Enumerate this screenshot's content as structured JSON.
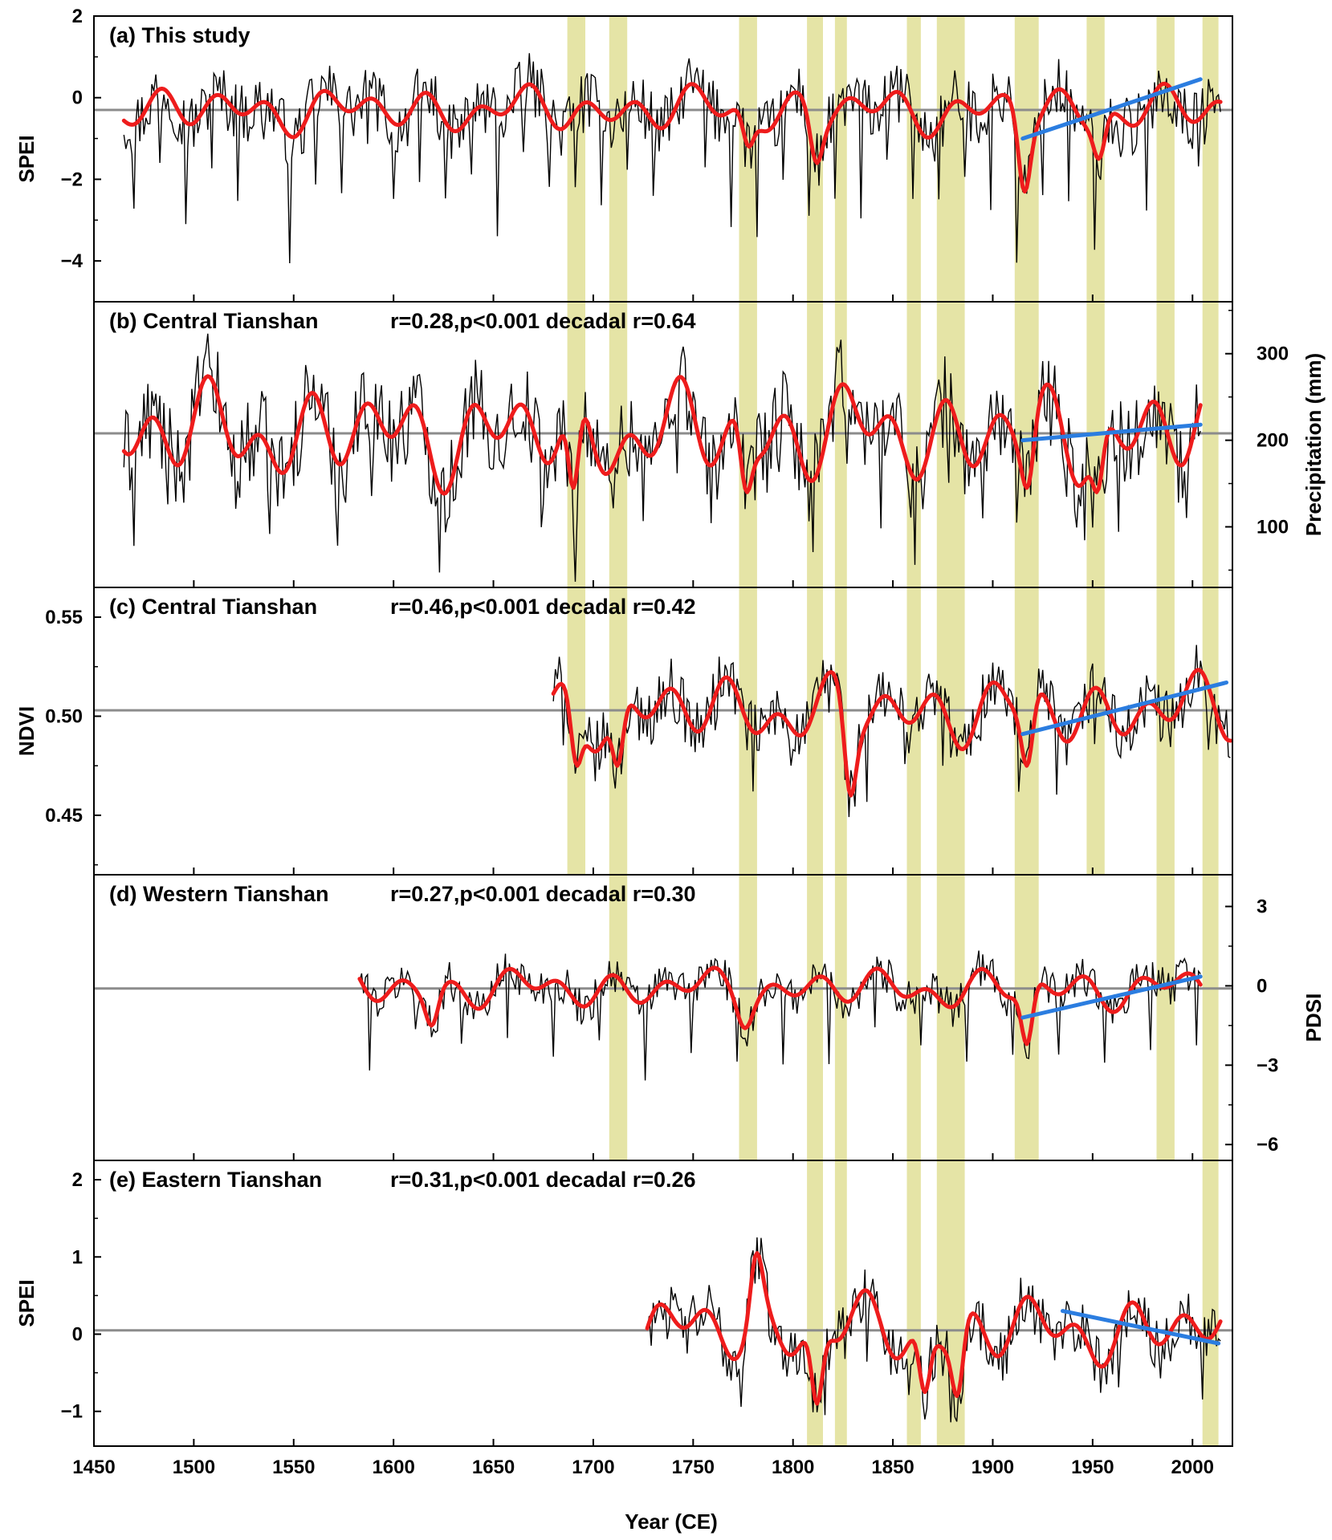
{
  "figure": {
    "xlabel": "Year (CE)"
  },
  "colors": {
    "band": "#e5e4a6",
    "raw": "#000000",
    "smooth": "#ee1c1c",
    "trend": "#2b7de0",
    "mean": "#8c8c8c",
    "frame": "#000000"
  },
  "chart_data": [
    {
      "id": "a",
      "type": "line",
      "title": "(a) This study",
      "stats": "",
      "ylabel": "SPEI",
      "yaxis_side": "left",
      "ylim": [
        -5,
        2
      ],
      "yticks": [
        -4,
        -2,
        0,
        2
      ],
      "ytick_labels": [
        "−4",
        "−2",
        "0",
        "2"
      ],
      "xlim": [
        1450,
        2020
      ],
      "start": 1465,
      "end": 2014,
      "mean": -0.3,
      "amp": 0.55,
      "smooth_amp": 0.45,
      "spike_every": 13,
      "spike_size": -2.2,
      "trend": {
        "x": [
          1915,
          2004
        ],
        "y": [
          -1.0,
          0.45
        ]
      },
      "droughts": [
        {
          "year": 1916,
          "value": -2.3
        },
        {
          "year": 1953,
          "value": -1.5
        },
        {
          "year": 1778,
          "value": -1.2
        },
        {
          "year": 1812,
          "value": -1.6
        }
      ]
    },
    {
      "id": "b",
      "type": "line",
      "title": "(b) Central Tianshan",
      "stats": "r=0.28,p<0.001   decadal r=0.64",
      "ylabel": "Precipitation (mm)",
      "yaxis_side": "right",
      "ylim": [
        30,
        360
      ],
      "yticks": [
        100,
        200,
        300
      ],
      "ytick_labels": [
        "100",
        "200",
        "300"
      ],
      "xlim": [
        1450,
        2020
      ],
      "start": 1465,
      "end": 2004,
      "mean": 208,
      "amp": 38,
      "smooth_amp": 45,
      "spike_every": 17,
      "spike_size": -70,
      "trend": {
        "x": [
          1915,
          2004
        ],
        "y": [
          200,
          218
        ]
      },
      "droughts": [
        {
          "year": 1917,
          "value": 145
        },
        {
          "year": 1952,
          "value": 140
        },
        {
          "year": 1690,
          "value": 145
        },
        {
          "year": 1777,
          "value": 140
        }
      ]
    },
    {
      "id": "c",
      "type": "line",
      "title": "(c) Central Tianshan",
      "stats": "r=0.46,p<0.001   decadal r=0.42",
      "ylabel": "NDVI",
      "yaxis_side": "left",
      "ylim": [
        0.42,
        0.565
      ],
      "yticks": [
        0.45,
        0.5,
        0.55
      ],
      "ytick_labels": [
        "0.45",
        "0.50",
        "0.55"
      ],
      "xlim": [
        1450,
        2020
      ],
      "start": 1680,
      "end": 2019,
      "mean": 0.503,
      "amp": 0.011,
      "smooth_amp": 0.014,
      "spike_every": 19,
      "spike_size": -0.025,
      "trend": {
        "x": [
          1915,
          2017
        ],
        "y": [
          0.491,
          0.517
        ]
      },
      "droughts": [
        {
          "year": 1692,
          "value": 0.475
        },
        {
          "year": 1712,
          "value": 0.475
        },
        {
          "year": 1829,
          "value": 0.46
        },
        {
          "year": 1917,
          "value": 0.475
        }
      ]
    },
    {
      "id": "d",
      "type": "line",
      "title": "(d) Western Tianshan",
      "stats": "r=0.27,p<0.001   decadal r=0.30",
      "ylabel": "PDSI",
      "yaxis_side": "right",
      "ylim": [
        -6.6,
        4.2
      ],
      "yticks": [
        -6,
        -3,
        0,
        3
      ],
      "ytick_labels": [
        "−6",
        "−3",
        "0",
        "3"
      ],
      "xlim": [
        1450,
        2020
      ],
      "start": 1583,
      "end": 2004,
      "mean": -0.1,
      "amp": 0.55,
      "smooth_amp": 0.6,
      "spike_every": 23,
      "spike_size": -2.2,
      "trend": {
        "x": [
          1915,
          2004
        ],
        "y": [
          -1.2,
          0.35
        ]
      },
      "droughts": [
        {
          "year": 1619,
          "value": -1.5
        },
        {
          "year": 1917,
          "value": -2.2
        },
        {
          "year": 1776,
          "value": -1.6
        }
      ]
    },
    {
      "id": "e",
      "type": "line",
      "title": "(e) Eastern Tianshan",
      "stats": "r=0.31,p<0.001   decadal r=0.26",
      "ylabel": "SPEI",
      "yaxis_side": "left",
      "ylim": [
        -1.45,
        2.25
      ],
      "yticks": [
        -1,
        0,
        1,
        2
      ],
      "ytick_labels": [
        "−1",
        "0",
        "1",
        "2"
      ],
      "xlim": [
        1450,
        2020
      ],
      "start": 1727,
      "end": 2014,
      "mean": 0.05,
      "amp": 0.28,
      "smooth_amp": 0.35,
      "spike_every": 21,
      "spike_size": -0.7,
      "trend": {
        "x": [
          1935,
          2013
        ],
        "y": [
          0.3,
          -0.12
        ]
      },
      "droughts": [
        {
          "year": 1812,
          "value": -0.9
        },
        {
          "year": 1866,
          "value": -0.75
        },
        {
          "year": 1882,
          "value": -0.8
        },
        {
          "year": 1782,
          "value": 1.05
        }
      ]
    }
  ],
  "drought_bands": [
    [
      1687,
      1696
    ],
    [
      1708,
      1717
    ],
    [
      1773,
      1782
    ],
    [
      1807,
      1815
    ],
    [
      1821,
      1827
    ],
    [
      1857,
      1864
    ],
    [
      1872,
      1886
    ],
    [
      1911,
      1923
    ],
    [
      1947,
      1956
    ],
    [
      1982,
      1991
    ],
    [
      2005,
      2013
    ]
  ],
  "band_panels": {
    "a": [
      0,
      1,
      2,
      3,
      4,
      5,
      6,
      7,
      8,
      9,
      10
    ],
    "b": [
      0,
      1,
      2,
      3,
      4,
      5,
      6,
      7,
      8,
      9,
      10
    ],
    "c": [
      0,
      1,
      2,
      3,
      4,
      5,
      6,
      7,
      8,
      9,
      10
    ],
    "d": [
      1,
      2,
      3,
      4,
      5,
      6,
      7,
      9,
      10
    ],
    "e": [
      3,
      4,
      5,
      6,
      10
    ]
  },
  "xaxis": {
    "ticks": [
      1450,
      1500,
      1550,
      1600,
      1650,
      1700,
      1750,
      1800,
      1850,
      1900,
      1950,
      2000
    ],
    "tick_labels": [
      "1450",
      "1500",
      "1550",
      "1600",
      "1650",
      "1700",
      "1750",
      "1800",
      "1850",
      "1900",
      "1950",
      "2000"
    ]
  }
}
